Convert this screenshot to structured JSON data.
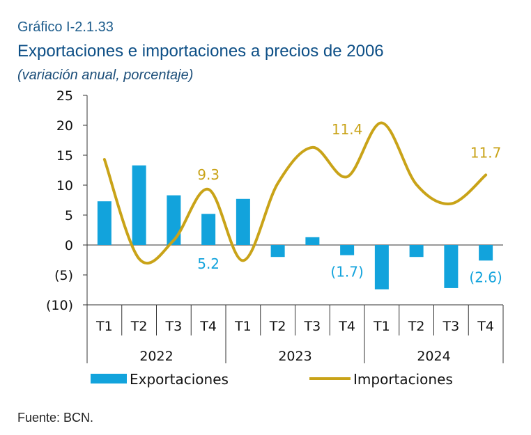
{
  "header": {
    "label": "Gráfico I-2.1.33",
    "title": "Exportaciones e importaciones a precios de 2006",
    "subtitle": "(variación anual, porcentaje)"
  },
  "source": "Fuente: BCN.",
  "colors": {
    "exports": "#12a3dc",
    "imports": "#c9a318",
    "axis": "#333333"
  },
  "chart_data": {
    "type": "bar",
    "categories": [
      "T1",
      "T2",
      "T3",
      "T4",
      "T1",
      "T2",
      "T3",
      "T4",
      "T1",
      "T2",
      "T3",
      "T4"
    ],
    "groups": [
      {
        "label": "2022",
        "count": 4
      },
      {
        "label": "2023",
        "count": 4
      },
      {
        "label": "2024",
        "count": 4
      }
    ],
    "series": [
      {
        "name": "Exportaciones",
        "type": "bar",
        "values": [
          7.3,
          13.3,
          8.3,
          5.2,
          7.7,
          -2.0,
          1.3,
          -1.7,
          -7.4,
          -2.0,
          -7.2,
          -2.6
        ]
      },
      {
        "name": "Importaciones",
        "type": "line",
        "values": [
          14.3,
          -2.3,
          0.8,
          9.3,
          -2.6,
          10.3,
          16.3,
          11.4,
          20.4,
          10.1,
          6.9,
          11.7
        ]
      }
    ],
    "ylim": [
      -10,
      25
    ],
    "yticks": [
      {
        "value": 25,
        "label": "25"
      },
      {
        "value": 20,
        "label": "20"
      },
      {
        "value": 15,
        "label": "15"
      },
      {
        "value": 10,
        "label": "10"
      },
      {
        "value": 5,
        "label": "5"
      },
      {
        "value": 0,
        "label": "0"
      },
      {
        "value": -5,
        "label": "(5)"
      },
      {
        "value": -10,
        "label": "(10)"
      }
    ],
    "data_labels": [
      {
        "series": 0,
        "index": 3,
        "text": "5.2"
      },
      {
        "series": 0,
        "index": 7,
        "text": "(1.7)"
      },
      {
        "series": 0,
        "index": 11,
        "text": "(2.6)"
      },
      {
        "series": 1,
        "index": 3,
        "text": "9.3"
      },
      {
        "series": 1,
        "index": 7,
        "text": "11.4"
      },
      {
        "series": 1,
        "index": 11,
        "text": "11.7"
      }
    ],
    "legend": {
      "position": "bottom",
      "items": [
        "Exportaciones",
        "Importaciones"
      ]
    }
  }
}
